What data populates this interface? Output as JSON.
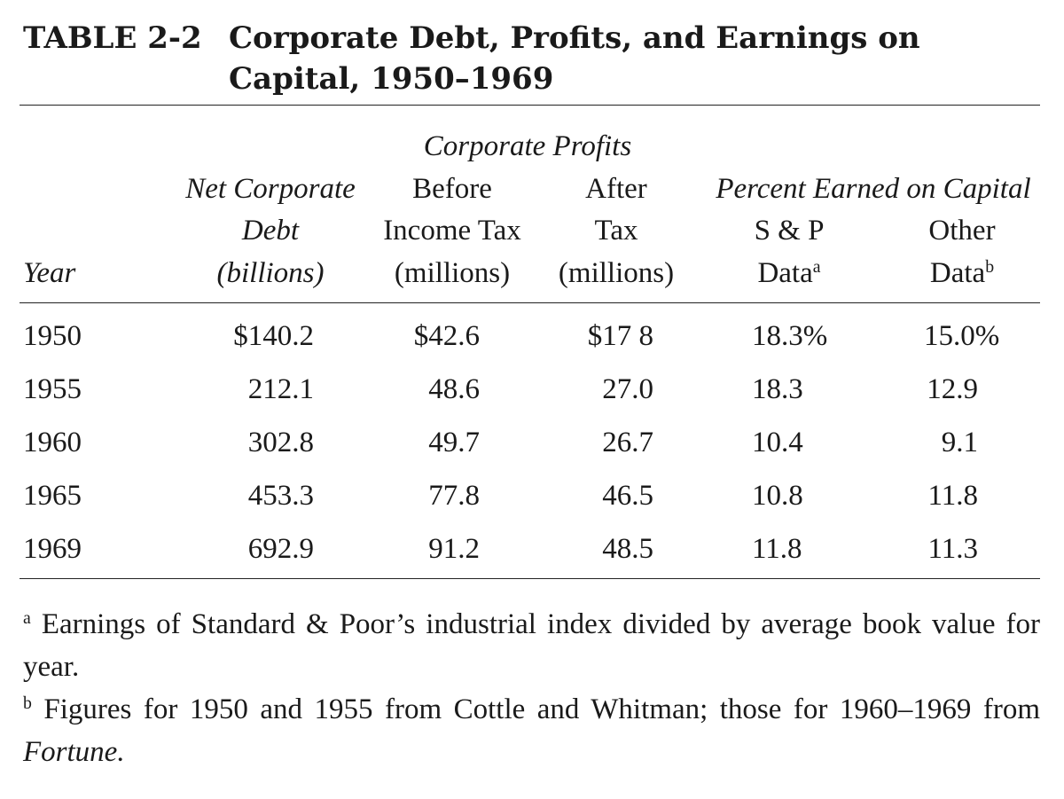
{
  "title": {
    "label": "TABLE 2-2",
    "text": "Corporate Debt, Profits, and Earnings on Capital, 1950–1969"
  },
  "header": {
    "group_profits": "Corporate Profits",
    "group_percent": "Percent Earned on Capital",
    "year": "Year",
    "debt": [
      "Net Corporate",
      "Debt",
      "(billions)"
    ],
    "before": [
      "Before",
      "Income Tax",
      "(millions)"
    ],
    "after": [
      "After",
      "Tax",
      "(millions)"
    ],
    "sp": [
      "S & P",
      "Data"
    ],
    "sp_mark": "a",
    "other": [
      "Other",
      "Data"
    ],
    "other_mark": "b"
  },
  "rows": [
    [
      "1950",
      "$140.2",
      "$42.6",
      "$17 8",
      "18.3%",
      "15.0%"
    ],
    [
      "1955",
      "212.1",
      "48.6",
      "27.0",
      "18.3",
      "12.9"
    ],
    [
      "1960",
      "302.8",
      "49.7",
      "26.7",
      "10.4",
      "9.1"
    ],
    [
      "1965",
      "453.3",
      "77.8",
      "46.5",
      "10.8",
      "11.8"
    ],
    [
      "1969",
      "692.9",
      "91.2",
      "48.5",
      "11.8",
      "11.3"
    ]
  ],
  "notes": {
    "a_mark": "a",
    "a_text": "Earnings of Standard & Poor’s industrial index divided by average book value for year.",
    "b_mark": "b",
    "b_text": "Figures for 1950 and 1955 from Cottle and Whitman; those for 1960–1969 from",
    "b_italic": "Fortune."
  }
}
